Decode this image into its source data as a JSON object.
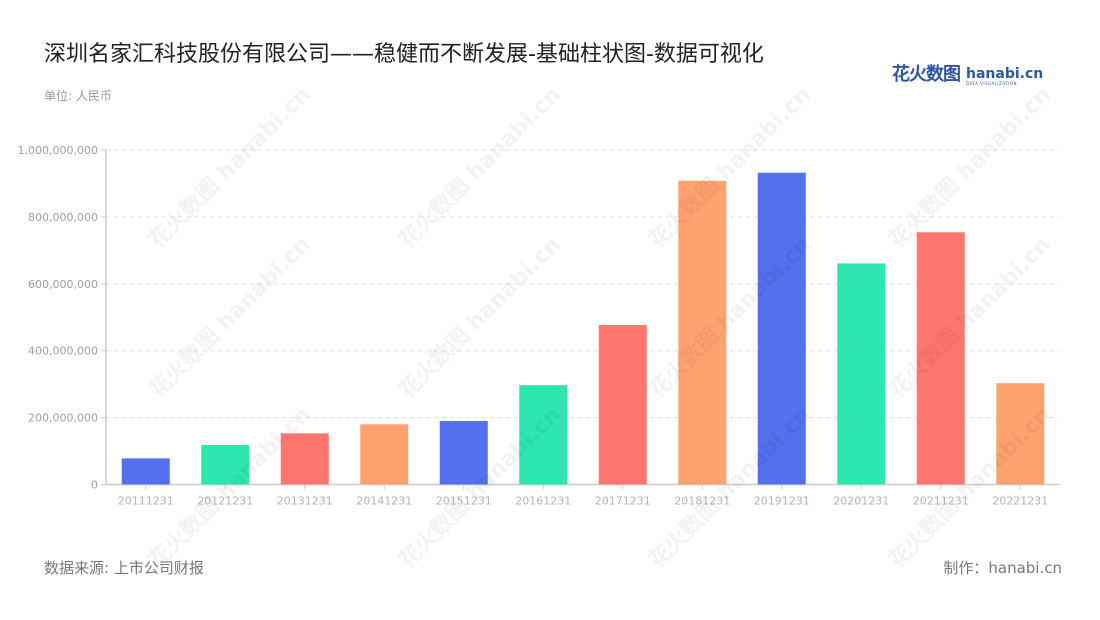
{
  "header": {
    "title": "深圳名家汇科技股份有限公司——稳健而不断发展-基础柱状图-数据可视化",
    "unit": "单位: 人民币"
  },
  "logo": {
    "cn": "花火数图",
    "en": "hanabi.cn",
    "sub": "DATA VISUALIZATION"
  },
  "footer": {
    "source": "数据来源: 上市公司财报",
    "maker": "制作：hanabi.cn"
  },
  "watermark": "花火数图 hanabi.cn",
  "chart_data": {
    "type": "bar",
    "title": "深圳名家汇科技股份有限公司——稳健而不断发展-基础柱状图-数据可视化",
    "xlabel": "",
    "ylabel": "单位: 人民币",
    "ylim": [
      0,
      1000000000
    ],
    "yticks": [
      "0",
      "200,000,000",
      "400,000,000",
      "600,000,000",
      "800,000,000",
      "1,000,000,000"
    ],
    "grid": true,
    "legend": "none",
    "categories": [
      "20111231",
      "20121231",
      "20131231",
      "20141231",
      "20151231",
      "20161231",
      "20171231",
      "20181231",
      "20191231",
      "20201231",
      "20211231",
      "20221231"
    ],
    "values": [
      78000000,
      118000000,
      153000000,
      180000000,
      190000000,
      297000000,
      477000000,
      908000000,
      932000000,
      661000000,
      754000000,
      303000000
    ],
    "colors": [
      "#5470ee",
      "#2de6b0",
      "#ff766f",
      "#ffa270",
      "#5470ee",
      "#2de6b0",
      "#ff766f",
      "#ffa270",
      "#5470ee",
      "#2de6b0",
      "#ff766f",
      "#ffa270"
    ]
  }
}
